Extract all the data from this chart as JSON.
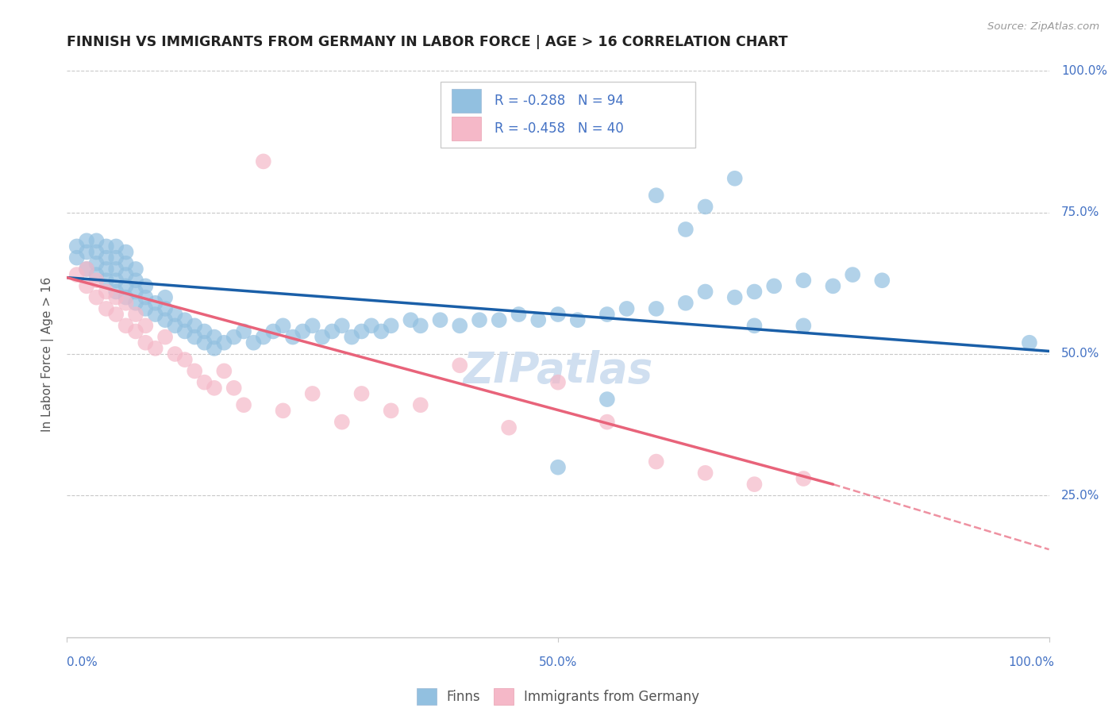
{
  "title": "FINNISH VS IMMIGRANTS FROM GERMANY IN LABOR FORCE | AGE > 16 CORRELATION CHART",
  "source_text": "Source: ZipAtlas.com",
  "ylabel": "In Labor Force | Age > 16",
  "xlim": [
    0.0,
    1.0
  ],
  "ylim": [
    0.0,
    1.0
  ],
  "legend_r1": "R = -0.288",
  "legend_n1": "N = 94",
  "legend_r2": "R = -0.458",
  "legend_n2": "N = 40",
  "finn_color": "#92c0e0",
  "imm_color": "#f5b8c8",
  "finn_line_color": "#1a5fa8",
  "imm_line_color": "#e8637a",
  "background_color": "#ffffff",
  "grid_color": "#c8c8c8",
  "title_color": "#222222",
  "axis_label_color": "#555555",
  "right_tick_color": "#4472c4",
  "watermark_color": "#d0dff0",
  "finn_scatter": {
    "x": [
      0.01,
      0.01,
      0.02,
      0.02,
      0.02,
      0.03,
      0.03,
      0.03,
      0.03,
      0.04,
      0.04,
      0.04,
      0.04,
      0.05,
      0.05,
      0.05,
      0.05,
      0.05,
      0.06,
      0.06,
      0.06,
      0.06,
      0.06,
      0.07,
      0.07,
      0.07,
      0.07,
      0.08,
      0.08,
      0.08,
      0.09,
      0.09,
      0.1,
      0.1,
      0.1,
      0.11,
      0.11,
      0.12,
      0.12,
      0.13,
      0.13,
      0.14,
      0.14,
      0.15,
      0.15,
      0.16,
      0.17,
      0.18,
      0.19,
      0.2,
      0.21,
      0.22,
      0.23,
      0.24,
      0.25,
      0.26,
      0.27,
      0.28,
      0.29,
      0.3,
      0.31,
      0.32,
      0.33,
      0.35,
      0.36,
      0.38,
      0.4,
      0.42,
      0.44,
      0.46,
      0.48,
      0.5,
      0.52,
      0.55,
      0.57,
      0.6,
      0.63,
      0.65,
      0.68,
      0.7,
      0.72,
      0.75,
      0.78,
      0.8,
      0.83,
      0.6,
      0.63,
      0.65,
      0.68,
      0.5,
      0.55,
      0.7,
      0.75,
      0.98
    ],
    "y": [
      0.67,
      0.69,
      0.65,
      0.68,
      0.7,
      0.64,
      0.66,
      0.68,
      0.7,
      0.63,
      0.65,
      0.67,
      0.69,
      0.61,
      0.63,
      0.65,
      0.67,
      0.69,
      0.6,
      0.62,
      0.64,
      0.66,
      0.68,
      0.59,
      0.61,
      0.63,
      0.65,
      0.58,
      0.6,
      0.62,
      0.57,
      0.59,
      0.56,
      0.58,
      0.6,
      0.55,
      0.57,
      0.54,
      0.56,
      0.53,
      0.55,
      0.52,
      0.54,
      0.51,
      0.53,
      0.52,
      0.53,
      0.54,
      0.52,
      0.53,
      0.54,
      0.55,
      0.53,
      0.54,
      0.55,
      0.53,
      0.54,
      0.55,
      0.53,
      0.54,
      0.55,
      0.54,
      0.55,
      0.56,
      0.55,
      0.56,
      0.55,
      0.56,
      0.56,
      0.57,
      0.56,
      0.57,
      0.56,
      0.57,
      0.58,
      0.58,
      0.59,
      0.61,
      0.6,
      0.61,
      0.62,
      0.63,
      0.62,
      0.64,
      0.63,
      0.78,
      0.72,
      0.76,
      0.81,
      0.3,
      0.42,
      0.55,
      0.55,
      0.52
    ]
  },
  "imm_scatter": {
    "x": [
      0.01,
      0.02,
      0.02,
      0.03,
      0.03,
      0.04,
      0.04,
      0.05,
      0.05,
      0.06,
      0.06,
      0.07,
      0.07,
      0.08,
      0.08,
      0.09,
      0.1,
      0.11,
      0.12,
      0.13,
      0.14,
      0.15,
      0.16,
      0.17,
      0.18,
      0.2,
      0.22,
      0.25,
      0.28,
      0.3,
      0.33,
      0.36,
      0.4,
      0.45,
      0.5,
      0.55,
      0.6,
      0.65,
      0.7,
      0.75
    ],
    "y": [
      0.64,
      0.62,
      0.65,
      0.6,
      0.63,
      0.58,
      0.61,
      0.57,
      0.6,
      0.55,
      0.59,
      0.54,
      0.57,
      0.52,
      0.55,
      0.51,
      0.53,
      0.5,
      0.49,
      0.47,
      0.45,
      0.44,
      0.47,
      0.44,
      0.41,
      0.84,
      0.4,
      0.43,
      0.38,
      0.43,
      0.4,
      0.41,
      0.48,
      0.37,
      0.45,
      0.38,
      0.31,
      0.29,
      0.27,
      0.28
    ]
  },
  "finn_line": {
    "x0": 0.0,
    "y0": 0.635,
    "x1": 1.0,
    "y1": 0.505
  },
  "imm_line": {
    "x0": 0.0,
    "y0": 0.635,
    "x1": 0.78,
    "y1": 0.27
  },
  "imm_line_dash": {
    "x0": 0.78,
    "y0": 0.27,
    "x1": 1.0,
    "y1": 0.155
  }
}
